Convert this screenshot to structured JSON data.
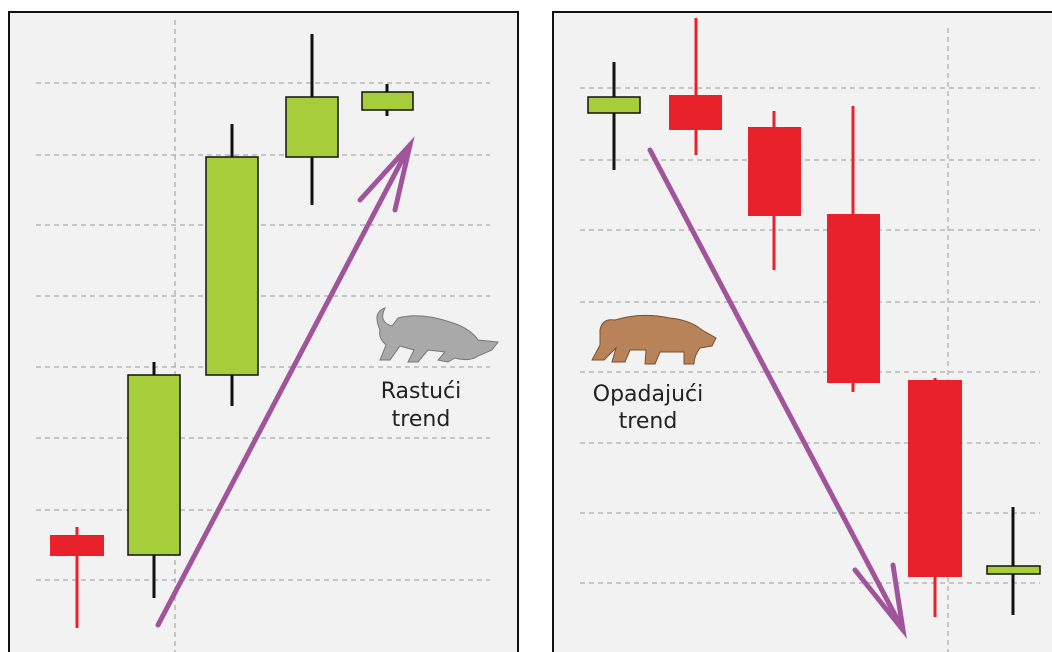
{
  "panels": [
    {
      "label": [
        "Rastući",
        "trend"
      ]
    },
    {
      "label": [
        "Opadajući",
        "trend"
      ]
    }
  ]
}
